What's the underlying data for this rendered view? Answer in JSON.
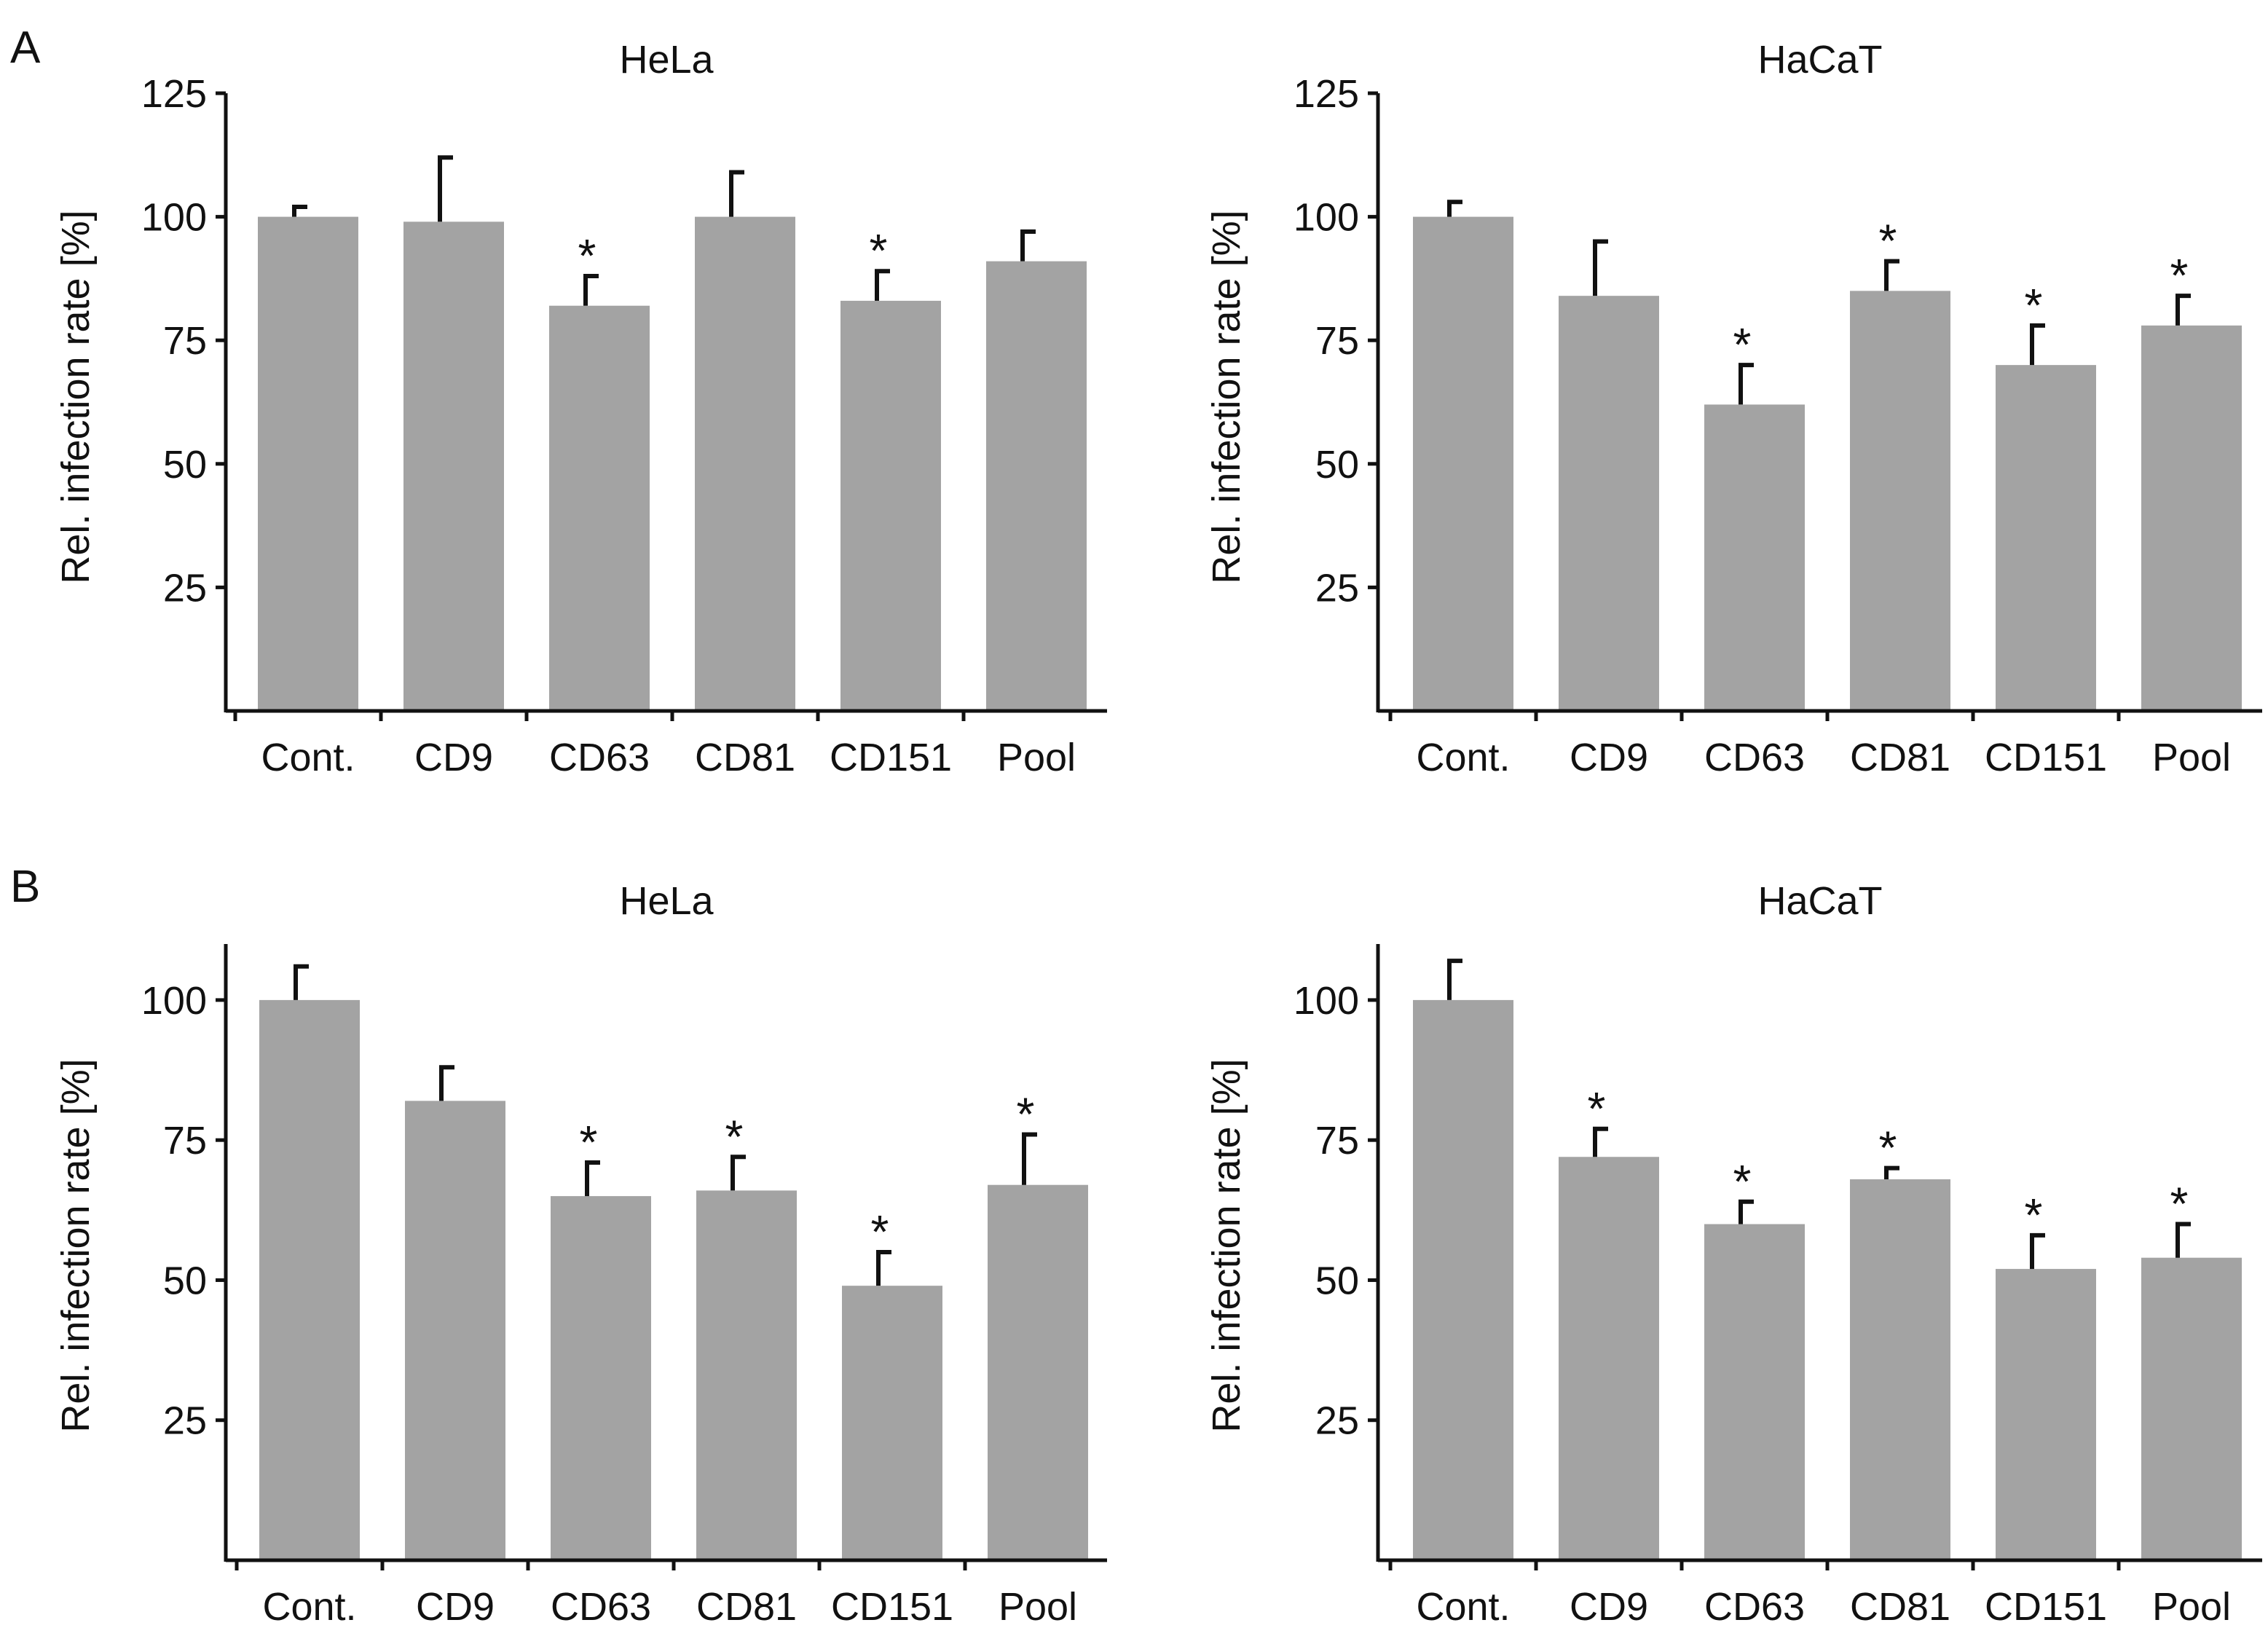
{
  "panel_labels": [
    "A",
    "B"
  ],
  "chart_data": [
    {
      "panel": "A",
      "type": "bar",
      "title": "HeLa",
      "xlabel": "",
      "ylabel": "Rel. infection rate [%]",
      "ylim": [
        0,
        125
      ],
      "yticks": [
        25,
        50,
        75,
        100,
        125
      ],
      "categories": [
        "Cont.",
        "CD9",
        "CD63",
        "CD81",
        "CD151",
        "Pool"
      ],
      "values": [
        100,
        99,
        82,
        100,
        83,
        91
      ],
      "errors": [
        2,
        13,
        6,
        9,
        6,
        6
      ],
      "significance": [
        "",
        "",
        "*",
        "",
        "*",
        ""
      ],
      "bar_color": "#a3a3a3"
    },
    {
      "panel": "A",
      "type": "bar",
      "title": "HaCaT",
      "xlabel": "",
      "ylabel": "Rel. infection rate [%]",
      "ylim": [
        0,
        125
      ],
      "yticks": [
        25,
        50,
        75,
        100,
        125
      ],
      "categories": [
        "Cont.",
        "CD9",
        "CD63",
        "CD81",
        "CD151",
        "Pool"
      ],
      "values": [
        100,
        84,
        62,
        85,
        70,
        78
      ],
      "errors": [
        3,
        11,
        8,
        6,
        8,
        6
      ],
      "significance": [
        "",
        "",
        "*",
        "*",
        "*",
        "*"
      ],
      "bar_color": "#a3a3a3"
    },
    {
      "panel": "B",
      "type": "bar",
      "title": "HeLa",
      "xlabel": "",
      "ylabel": "Rel. infection rate [%]",
      "ylim": [
        0,
        110
      ],
      "yticks": [
        25,
        50,
        75,
        100
      ],
      "categories": [
        "Cont.",
        "CD9",
        "CD63",
        "CD81",
        "CD151",
        "Pool"
      ],
      "values": [
        100,
        82,
        65,
        66,
        49,
        67
      ],
      "errors": [
        6,
        6,
        6,
        6,
        6,
        9
      ],
      "significance": [
        "",
        "",
        "*",
        "*",
        "*",
        "*"
      ],
      "bar_color": "#a3a3a3"
    },
    {
      "panel": "B",
      "type": "bar",
      "title": "HaCaT",
      "xlabel": "",
      "ylabel": "Rel. infection rate [%]",
      "ylim": [
        0,
        110
      ],
      "yticks": [
        25,
        50,
        75,
        100
      ],
      "categories": [
        "Cont.",
        "CD9",
        "CD63",
        "CD81",
        "CD151",
        "Pool"
      ],
      "values": [
        100,
        72,
        60,
        68,
        52,
        54
      ],
      "errors": [
        7,
        5,
        4,
        2,
        6,
        6
      ],
      "significance": [
        "",
        "*",
        "*",
        "*",
        "*",
        "*"
      ],
      "bar_color": "#a3a3a3"
    }
  ]
}
